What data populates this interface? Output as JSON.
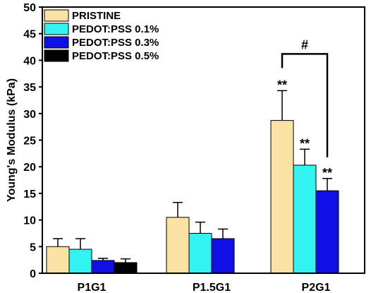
{
  "chart_data": {
    "type": "bar",
    "title": "",
    "xlabel": "",
    "ylabel": "Young's Modulus (kPa)",
    "ylim": [
      0,
      50
    ],
    "yticks": [
      0,
      5,
      10,
      15,
      20,
      25,
      30,
      35,
      40,
      45,
      50
    ],
    "grid": false,
    "legend_position": "top-left",
    "categories": [
      "P1G1",
      "P1.5G1",
      "P2G1"
    ],
    "series": [
      {
        "name": "PRISTINE",
        "color": "#FAE1A4",
        "values": [
          5.0,
          10.5,
          28.7
        ],
        "errors": [
          1.5,
          2.8,
          5.6
        ]
      },
      {
        "name": "PEDOT:PSS 0.1%",
        "color": "#33F2F2",
        "values": [
          4.5,
          7.5,
          20.3
        ],
        "errors": [
          2.0,
          2.1,
          3.0
        ]
      },
      {
        "name": "PEDOT:PSS 0.3%",
        "color": "#1010E6",
        "values": [
          2.4,
          6.5,
          15.5
        ],
        "errors": [
          0.4,
          1.8,
          2.3
        ]
      },
      {
        "name": "PEDOT:PSS 0.5%",
        "color": "#000000",
        "values": [
          2.0,
          null,
          null
        ],
        "errors": [
          0.7,
          null,
          null
        ]
      }
    ],
    "annotations": [
      {
        "text": "**",
        "category": "P2G1",
        "series": "PRISTINE"
      },
      {
        "text": "**",
        "category": "P2G1",
        "series": "PEDOT:PSS 0.1%"
      },
      {
        "text": "**",
        "category": "P2G1",
        "series": "PEDOT:PSS 0.3%"
      },
      {
        "text": "#",
        "category": "P2G1",
        "between": [
          "PRISTINE",
          "PEDOT:PSS 0.3%"
        ]
      }
    ]
  }
}
